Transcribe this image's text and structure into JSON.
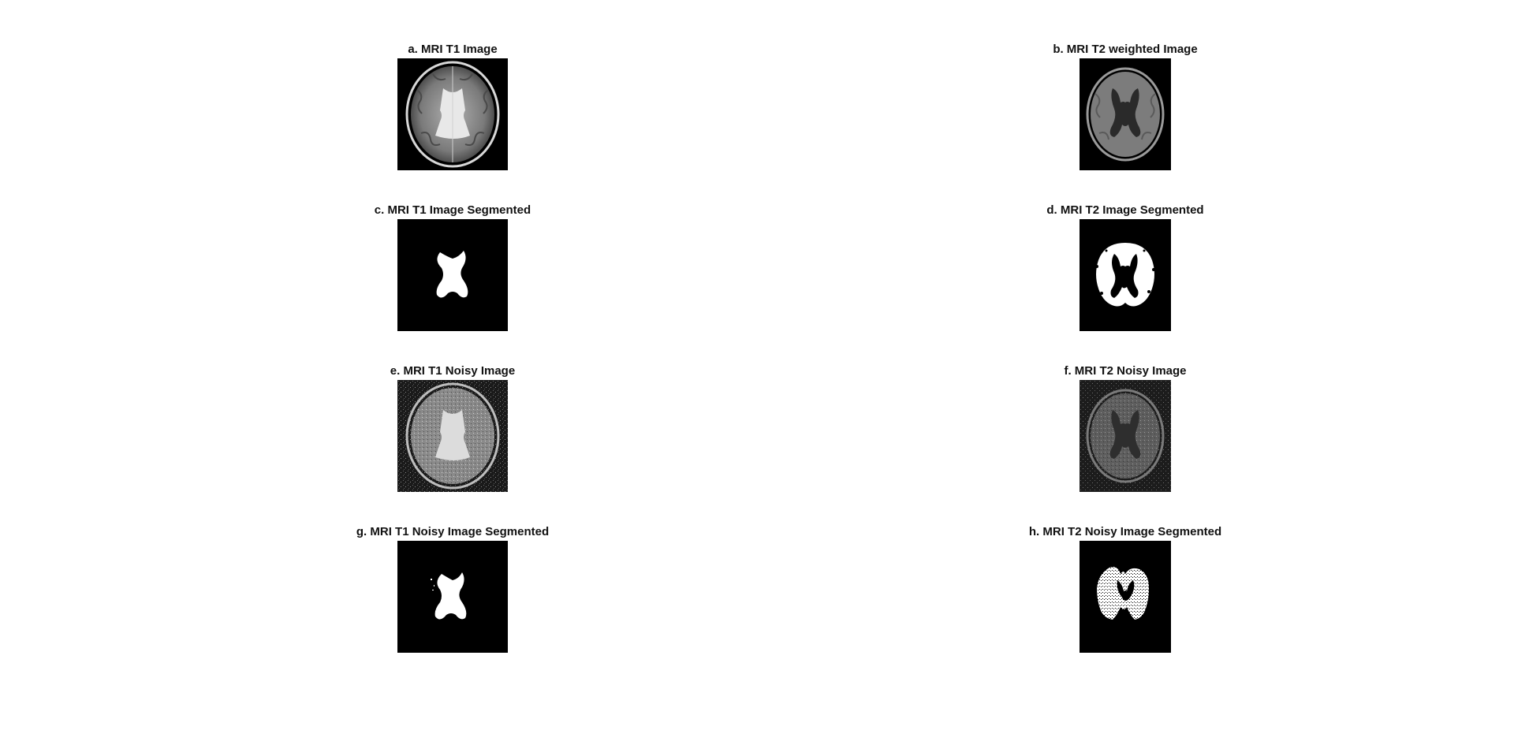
{
  "panels": {
    "a": {
      "title": "a. MRI T1 Image"
    },
    "b": {
      "title": "b. MRI T2 weighted Image"
    },
    "c": {
      "title": "c. MRI T1 Image Segmented"
    },
    "d": {
      "title": "d. MRI T2 Image Segmented"
    },
    "e": {
      "title": "e. MRI T1 Noisy Image"
    },
    "f": {
      "title": "f. MRI T2 Noisy Image"
    },
    "g": {
      "title": "g. MRI T1 Noisy Image Segmented"
    },
    "h": {
      "title": "h. MRI T2 Noisy Image Segmented"
    }
  },
  "colors": {
    "background": "#ffffff",
    "image_background": "#000000",
    "title_text": "#111111"
  }
}
